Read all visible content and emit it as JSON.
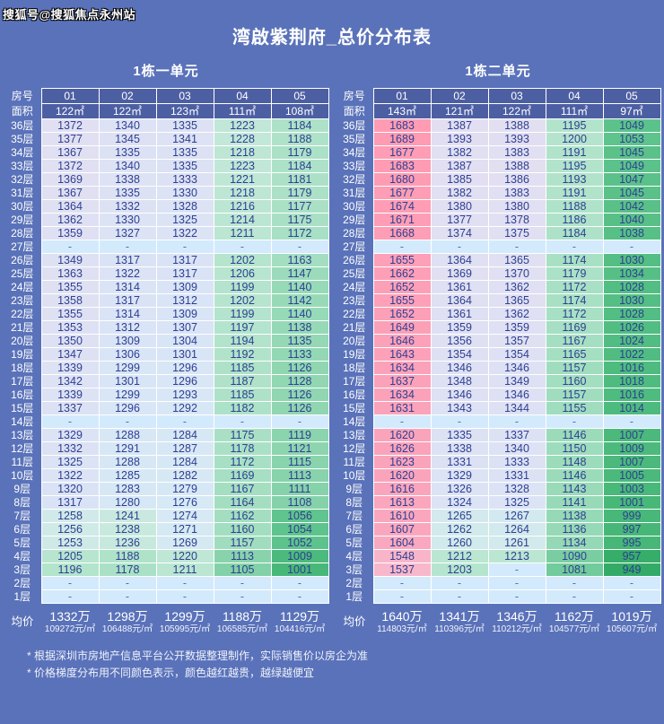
{
  "watermark": "搜狐号@搜狐焦点永州站",
  "title": "湾啟紫荆府_总价分布表",
  "labels": {
    "room": "房号",
    "area": "面积",
    "avg": "均价",
    "empty": "-"
  },
  "notes": [
    "* 根据深圳市房地产信息平台公开数据整理制作，实际销售价以房企为准",
    "* 价格梯度分布用不同颜色表示，颜色越红越贵，越绿越便宜"
  ],
  "colors": {
    "page_bg": "#5a72b9",
    "header_cell_bg": "#4d5fa3",
    "header_text": "#ffffff",
    "cell_text": "#2e3f92",
    "empty_cell_bg": "#d3eafc",
    "empty_cell_text": "#4176b6",
    "grid_border": "#ffffff",
    "scale": [
      [
        949,
        "#33ab66"
      ],
      [
        1000,
        "#48b879"
      ],
      [
        1050,
        "#5cc28b"
      ],
      [
        1100,
        "#80d0a6"
      ],
      [
        1150,
        "#9ddcbc"
      ],
      [
        1190,
        "#b0e3ca"
      ],
      [
        1220,
        "#bee7d5"
      ],
      [
        1250,
        "#ceeae4"
      ],
      [
        1275,
        "#d6e9f5"
      ],
      [
        1310,
        "#d9e4f6"
      ],
      [
        1350,
        "#dee1f3"
      ],
      [
        1400,
        "#e3def1"
      ],
      [
        1530,
        "#f8b9cc"
      ],
      [
        1620,
        "#faa4bc"
      ],
      [
        1690,
        "#ff9bb3"
      ]
    ]
  },
  "chart_data": {
    "type": "table",
    "tables": [
      {
        "title": "1栋一单元",
        "rooms": [
          "01",
          "02",
          "03",
          "04",
          "05"
        ],
        "areas": [
          "122㎡",
          "122㎡",
          "123㎡",
          "111㎡",
          "108㎡"
        ],
        "floors": [
          "36层",
          "35层",
          "34层",
          "33层",
          "32层",
          "31层",
          "30层",
          "29层",
          "28层",
          "27层",
          "26层",
          "25层",
          "24层",
          "23层",
          "22层",
          "21层",
          "20层",
          "19层",
          "18层",
          "17层",
          "16层",
          "15层",
          "14层",
          "13层",
          "12层",
          "11层",
          "10层",
          "9层",
          "8层",
          "7层",
          "6层",
          "5层",
          "4层",
          "3层",
          "2层",
          "1层"
        ],
        "rows": [
          [
            1372,
            1340,
            1335,
            1223,
            1184
          ],
          [
            1377,
            1345,
            1341,
            1228,
            1188
          ],
          [
            1367,
            1335,
            1335,
            1218,
            1179
          ],
          [
            1372,
            1340,
            1335,
            1223,
            1184
          ],
          [
            1369,
            1338,
            1333,
            1221,
            1181
          ],
          [
            1367,
            1335,
            1330,
            1218,
            1179
          ],
          [
            1364,
            1332,
            1328,
            1216,
            1177
          ],
          [
            1362,
            1330,
            1325,
            1214,
            1175
          ],
          [
            1359,
            1327,
            1322,
            1211,
            1172
          ],
          [
            "-",
            "-",
            "-",
            "-",
            "-"
          ],
          [
            1349,
            1317,
            1317,
            1202,
            1163
          ],
          [
            1363,
            1322,
            1317,
            1206,
            1147
          ],
          [
            1355,
            1314,
            1309,
            1199,
            1140
          ],
          [
            1358,
            1317,
            1312,
            1202,
            1142
          ],
          [
            1355,
            1314,
            1309,
            1199,
            1140
          ],
          [
            1353,
            1312,
            1307,
            1197,
            1138
          ],
          [
            1350,
            1309,
            1304,
            1194,
            1135
          ],
          [
            1347,
            1306,
            1301,
            1192,
            1133
          ],
          [
            1339,
            1299,
            1296,
            1185,
            1126
          ],
          [
            1342,
            1301,
            1296,
            1187,
            1128
          ],
          [
            1339,
            1299,
            1293,
            1185,
            1126
          ],
          [
            1337,
            1296,
            1292,
            1182,
            1126
          ],
          [
            "-",
            "-",
            "-",
            "-",
            "-"
          ],
          [
            1329,
            1288,
            1284,
            1175,
            1119
          ],
          [
            1332,
            1291,
            1287,
            1178,
            1121
          ],
          [
            1325,
            1288,
            1284,
            1172,
            1115
          ],
          [
            1322,
            1285,
            1282,
            1169,
            1113
          ],
          [
            1320,
            1283,
            1279,
            1167,
            1111
          ],
          [
            1317,
            1280,
            1276,
            1164,
            1108
          ],
          [
            1258,
            1241,
            1274,
            1162,
            1056
          ],
          [
            1256,
            1238,
            1271,
            1160,
            1054
          ],
          [
            1253,
            1236,
            1269,
            1157,
            1052
          ],
          [
            1205,
            1188,
            1220,
            1113,
            1009
          ],
          [
            1196,
            1178,
            1211,
            1105,
            1001
          ],
          [
            "-",
            "-",
            "-",
            "-",
            "-"
          ],
          [
            "-",
            "-",
            "-",
            "-",
            "-"
          ]
        ],
        "avg_totals": [
          "1332万",
          "1298万",
          "1299万",
          "1188万",
          "1129万"
        ],
        "avg_units": [
          "109272元/㎡",
          "106488元/㎡",
          "105995元/㎡",
          "106585元/㎡",
          "104416元/㎡"
        ]
      },
      {
        "title": "1栋二单元",
        "rooms": [
          "01",
          "02",
          "03",
          "04",
          "05"
        ],
        "areas": [
          "143㎡",
          "121㎡",
          "122㎡",
          "111㎡",
          "97㎡"
        ],
        "floors": [
          "36层",
          "35层",
          "34层",
          "33层",
          "32层",
          "31层",
          "30层",
          "29层",
          "28层",
          "27层",
          "26层",
          "25层",
          "24层",
          "23层",
          "22层",
          "21层",
          "20层",
          "19层",
          "18层",
          "17层",
          "16层",
          "15层",
          "14层",
          "13层",
          "12层",
          "11层",
          "10层",
          "9层",
          "8层",
          "7层",
          "6层",
          "5层",
          "4层",
          "3层",
          "2层",
          "1层"
        ],
        "rows": [
          [
            1683,
            1387,
            1388,
            1195,
            1049
          ],
          [
            1689,
            1393,
            1393,
            1200,
            1053
          ],
          [
            1677,
            1382,
            1383,
            1191,
            1045
          ],
          [
            1683,
            1387,
            1388,
            1195,
            1049
          ],
          [
            1680,
            1385,
            1386,
            1193,
            1047
          ],
          [
            1677,
            1382,
            1383,
            1191,
            1045
          ],
          [
            1674,
            1380,
            1380,
            1188,
            1042
          ],
          [
            1671,
            1377,
            1378,
            1186,
            1040
          ],
          [
            1668,
            1374,
            1375,
            1184,
            1038
          ],
          [
            "-",
            "-",
            "-",
            "-",
            "-"
          ],
          [
            1655,
            1364,
            1365,
            1174,
            1030
          ],
          [
            1662,
            1369,
            1370,
            1179,
            1034
          ],
          [
            1652,
            1361,
            1362,
            1172,
            1028
          ],
          [
            1655,
            1364,
            1365,
            1174,
            1030
          ],
          [
            1652,
            1361,
            1362,
            1172,
            1028
          ],
          [
            1649,
            1359,
            1359,
            1169,
            1026
          ],
          [
            1646,
            1356,
            1357,
            1167,
            1024
          ],
          [
            1643,
            1354,
            1354,
            1165,
            1022
          ],
          [
            1634,
            1346,
            1346,
            1157,
            1016
          ],
          [
            1637,
            1348,
            1349,
            1160,
            1018
          ],
          [
            1634,
            1346,
            1346,
            1157,
            1016
          ],
          [
            1631,
            1343,
            1344,
            1155,
            1014
          ],
          [
            "-",
            "-",
            "-",
            "-",
            "-"
          ],
          [
            1620,
            1335,
            1337,
            1146,
            1007
          ],
          [
            1626,
            1338,
            1340,
            1150,
            1009
          ],
          [
            1623,
            1331,
            1333,
            1148,
            1007
          ],
          [
            1620,
            1329,
            1331,
            1146,
            1005
          ],
          [
            1616,
            1326,
            1328,
            1143,
            1003
          ],
          [
            1613,
            1324,
            1325,
            1141,
            1001
          ],
          [
            1610,
            1265,
            1267,
            1138,
            999
          ],
          [
            1607,
            1262,
            1264,
            1136,
            997
          ],
          [
            1604,
            1260,
            1261,
            1134,
            995
          ],
          [
            1548,
            1212,
            1213,
            1090,
            957
          ],
          [
            1537,
            1203,
            "-",
            1081,
            949
          ],
          [
            "-",
            "-",
            "-",
            "-",
            "-"
          ],
          [
            "-",
            "-",
            "-",
            "-",
            "-"
          ]
        ],
        "avg_totals": [
          "1640万",
          "1341万",
          "1346万",
          "1162万",
          "1019万"
        ],
        "avg_units": [
          "114803元/㎡",
          "110396元/㎡",
          "110212元/㎡",
          "104577元/㎡",
          "105607元/㎡"
        ]
      }
    ]
  }
}
